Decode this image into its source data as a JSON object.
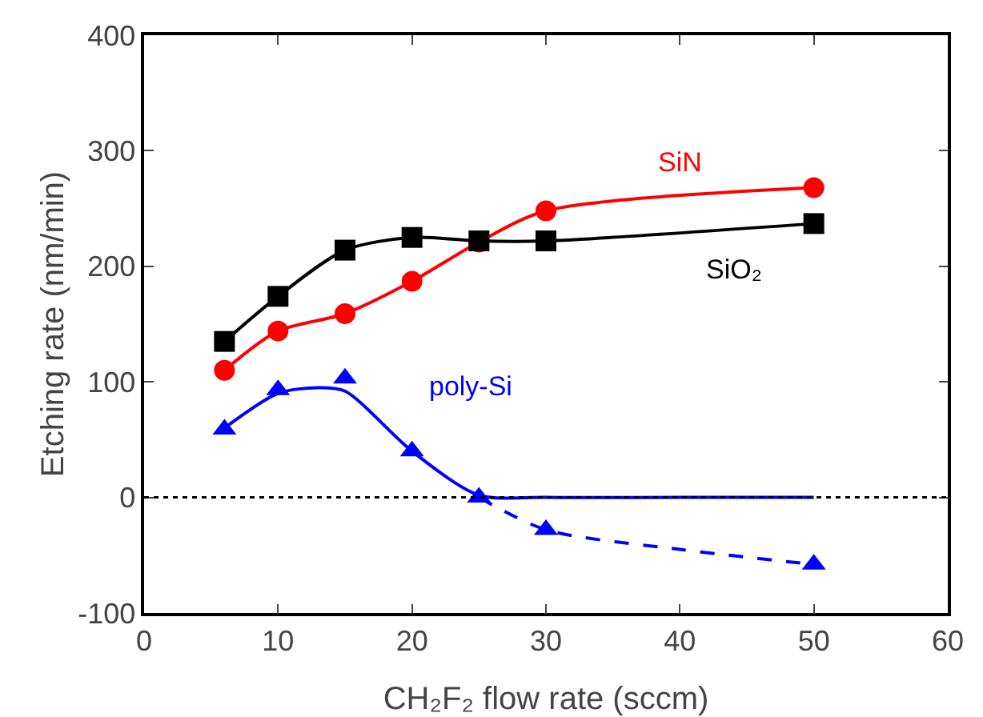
{
  "chart_data": {
    "type": "line",
    "xlabel": "CH₂F₂ flow rate (sccm)",
    "ylabel": "Etching rate (nm/min)",
    "xlim": [
      0,
      60
    ],
    "xticks": [
      0,
      10,
      20,
      30,
      40,
      50,
      60
    ],
    "ylim": [
      -100,
      400
    ],
    "yticks": [
      -100,
      0,
      100,
      200,
      300,
      400
    ],
    "ref_lines": [
      {
        "axis": "y",
        "value": 0,
        "color": "#000000",
        "line_style": "dotted"
      }
    ],
    "series": [
      {
        "name": "SiN",
        "color": "#ff0000",
        "marker": "circle",
        "x": [
          6,
          10,
          15,
          20,
          25,
          30,
          50
        ],
        "values": [
          110,
          144,
          159,
          187,
          221,
          248,
          268
        ]
      },
      {
        "name": "SiO₂",
        "color": "#000000",
        "marker": "square",
        "x": [
          6,
          10,
          15,
          20,
          25,
          30,
          50
        ],
        "values": [
          135,
          174,
          214,
          225,
          222,
          222,
          237
        ]
      },
      {
        "name": "poly-Si",
        "type": "scatter",
        "color": "#0000ff",
        "marker": "triangle",
        "x": [
          6,
          10,
          15,
          20,
          25,
          30,
          50
        ],
        "values": [
          59,
          93,
          103,
          40,
          0,
          -28,
          -58
        ]
      },
      {
        "type": "line",
        "color": "#0000ff",
        "marker": "none",
        "x": [
          6,
          10,
          13,
          15,
          20,
          25,
          30,
          40,
          50
        ],
        "values": [
          60,
          90,
          95,
          92,
          40,
          2,
          0,
          0,
          0
        ]
      },
      {
        "type": "line",
        "color": "#0000ff",
        "marker": "none",
        "line_style": "dashed",
        "x": [
          25,
          30,
          40,
          50
        ],
        "values": [
          0,
          -28,
          -45,
          -58
        ]
      }
    ]
  }
}
